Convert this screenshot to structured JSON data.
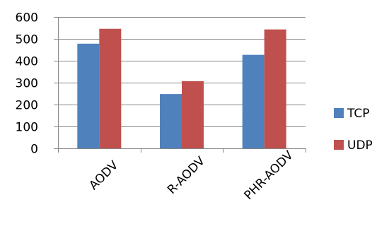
{
  "chart_data": {
    "type": "bar",
    "categories": [
      "AODV",
      "R-AODV",
      "PHR-AODV"
    ],
    "series": [
      {
        "name": "TCP",
        "values": [
          478,
          248,
          427
        ],
        "color": "#4F81BD"
      },
      {
        "name": "UDP",
        "values": [
          546,
          307,
          543
        ],
        "color": "#C0504D"
      }
    ],
    "ylim": [
      0,
      600
    ],
    "yticks": [
      0,
      100,
      200,
      300,
      400,
      500,
      600
    ],
    "grid": true,
    "legend_position": "right"
  }
}
